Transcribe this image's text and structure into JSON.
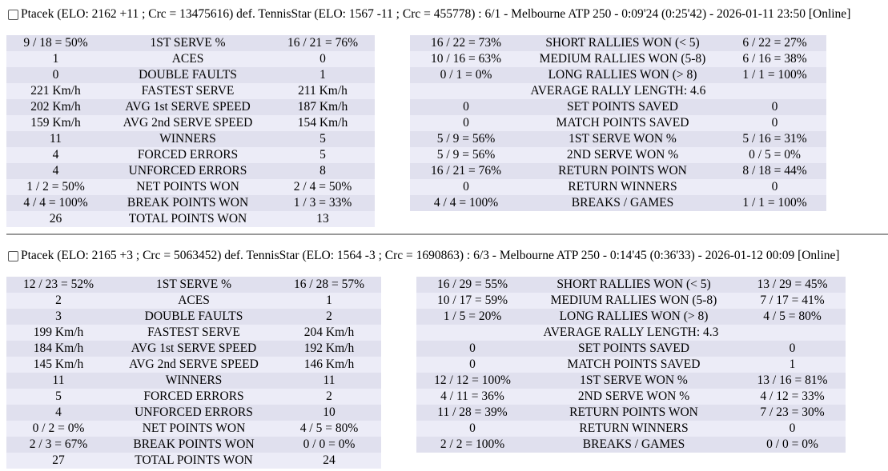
{
  "matches": [
    {
      "header": "Ptacek (ELO: 2162 +11 ; Crc = 13475616) def. TennisStar (ELO: 1567 -11 ; Crc = 455778) : 6/1 - Melbourne ATP 250 - 0:09'24 (0:25'42) - 2026-01-11 23:50 [Online]",
      "left": [
        [
          "9 / 18 = 50%",
          "1ST SERVE %",
          "16 / 21 = 76%"
        ],
        [
          "1",
          "ACES",
          "0"
        ],
        [
          "0",
          "DOUBLE FAULTS",
          "1"
        ],
        [
          "221 Km/h",
          "FASTEST SERVE",
          "211 Km/h"
        ],
        [
          "202 Km/h",
          "AVG 1st SERVE SPEED",
          "187 Km/h"
        ],
        [
          "159 Km/h",
          "AVG 2nd SERVE SPEED",
          "154 Km/h"
        ],
        [
          "11",
          "WINNERS",
          "5"
        ],
        [
          "4",
          "FORCED ERRORS",
          "5"
        ],
        [
          "4",
          "UNFORCED ERRORS",
          "8"
        ],
        [
          "1 / 2 = 50%",
          "NET POINTS WON",
          "2 / 4 = 50%"
        ],
        [
          "4 / 4 = 100%",
          "BREAK POINTS WON",
          "1 / 3 = 33%"
        ],
        [
          "26",
          "TOTAL POINTS WON",
          "13"
        ]
      ],
      "right": [
        [
          "16 / 22 = 73%",
          "SHORT RALLIES WON (< 5)",
          "6 / 22 = 27%"
        ],
        [
          "10 / 16 = 63%",
          "MEDIUM RALLIES WON (5-8)",
          "6 / 16 = 38%"
        ],
        [
          "0 / 1 = 0%",
          "LONG RALLIES WON (> 8)",
          "1 / 1 = 100%"
        ],
        [
          "AVERAGE RALLY LENGTH: 4.6"
        ],
        [
          "0",
          "SET POINTS SAVED",
          "0"
        ],
        [
          "0",
          "MATCH POINTS SAVED",
          "0"
        ],
        [
          "5 / 9 = 56%",
          "1ST SERVE WON %",
          "5 / 16 = 31%"
        ],
        [
          "5 / 9 = 56%",
          "2ND SERVE WON %",
          "0 / 5 = 0%"
        ],
        [
          "16 / 21 = 76%",
          "RETURN POINTS WON",
          "8 / 18 = 44%"
        ],
        [
          "0",
          "RETURN WINNERS",
          "0"
        ],
        [
          "4 / 4 = 100%",
          "BREAKS / GAMES",
          "1 / 1 = 100%"
        ]
      ]
    },
    {
      "header": "Ptacek (ELO: 2165 +3 ; Crc = 5063452) def. TennisStar (ELO: 1564 -3 ; Crc = 1690863) : 6/3 - Melbourne ATP 250 - 0:14'45 (0:36'33) - 2026-01-12 00:09 [Online]",
      "left": [
        [
          "12 / 23 = 52%",
          "1ST SERVE %",
          "16 / 28 = 57%"
        ],
        [
          "2",
          "ACES",
          "1"
        ],
        [
          "3",
          "DOUBLE FAULTS",
          "2"
        ],
        [
          "199 Km/h",
          "FASTEST SERVE",
          "204 Km/h"
        ],
        [
          "184 Km/h",
          "AVG 1st SERVE SPEED",
          "192 Km/h"
        ],
        [
          "145 Km/h",
          "AVG 2nd SERVE SPEED",
          "146 Km/h"
        ],
        [
          "11",
          "WINNERS",
          "11"
        ],
        [
          "5",
          "FORCED ERRORS",
          "2"
        ],
        [
          "4",
          "UNFORCED ERRORS",
          "10"
        ],
        [
          "0 / 2 = 0%",
          "NET POINTS WON",
          "4 / 5 = 80%"
        ],
        [
          "2 / 3 = 67%",
          "BREAK POINTS WON",
          "0 / 0 = 0%"
        ],
        [
          "27",
          "TOTAL POINTS WON",
          "24"
        ]
      ],
      "right": [
        [
          "16 / 29 = 55%",
          "SHORT RALLIES WON (< 5)",
          "13 / 29 = 45%"
        ],
        [
          "10 / 17 = 59%",
          "MEDIUM RALLIES WON (5-8)",
          "7 / 17 = 41%"
        ],
        [
          "1 / 5 = 20%",
          "LONG RALLIES WON (> 8)",
          "4 / 5 = 80%"
        ],
        [
          "AVERAGE RALLY LENGTH: 4.3"
        ],
        [
          "0",
          "SET POINTS SAVED",
          "0"
        ],
        [
          "0",
          "MATCH POINTS SAVED",
          "1"
        ],
        [
          "12 / 12 = 100%",
          "1ST SERVE WON %",
          "13 / 16 = 81%"
        ],
        [
          "4 / 11 = 36%",
          "2ND SERVE WON %",
          "4 / 12 = 33%"
        ],
        [
          "11 / 28 = 39%",
          "RETURN POINTS WON",
          "7 / 23 = 30%"
        ],
        [
          "0",
          "RETURN WINNERS",
          "0"
        ],
        [
          "2 / 2 = 100%",
          "BREAKS / GAMES",
          "0 / 0 = 0%"
        ]
      ]
    }
  ]
}
